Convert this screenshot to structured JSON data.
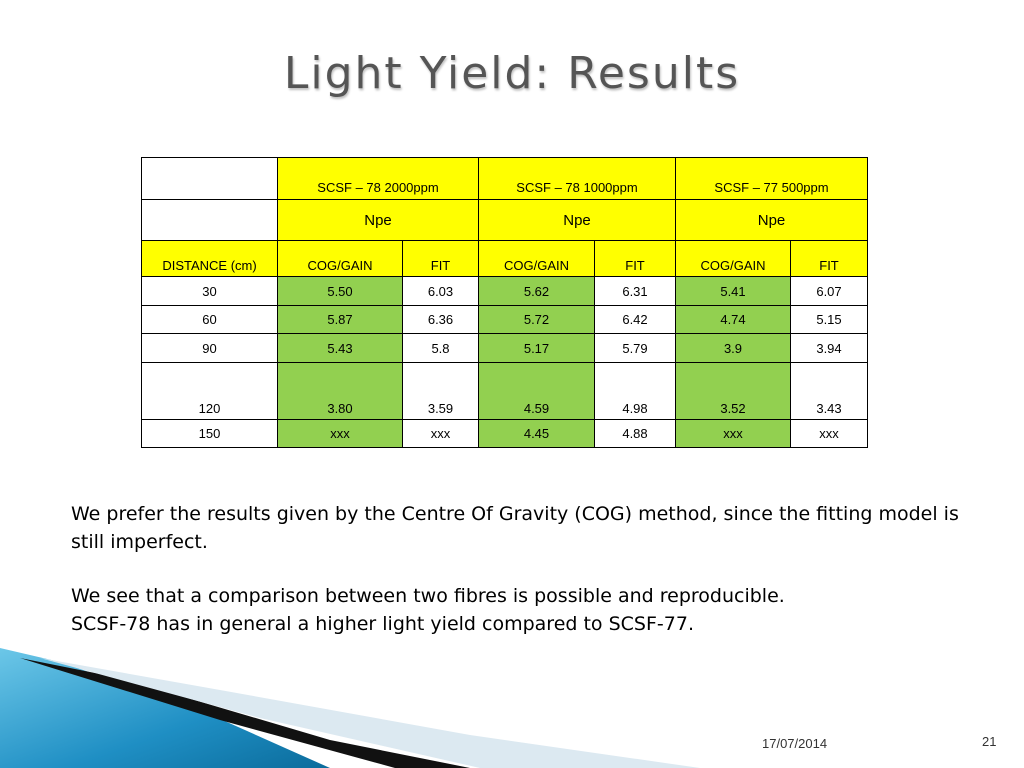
{
  "title": "Light Yield: Results",
  "table": {
    "group_headers": [
      "SCSF – 78 2000ppm",
      "SCSF – 78 1000ppm",
      "SCSF – 77 500ppm"
    ],
    "npe_label": "Npe",
    "col_headers": [
      "DISTANCE (cm)",
      "COG/GAIN",
      "FIT",
      "COG/GAIN",
      "FIT",
      "COG/GAIN",
      "FIT"
    ],
    "rows": [
      [
        "30",
        "5.50",
        "6.03",
        "5.62",
        "6.31",
        "5.41",
        "6.07"
      ],
      [
        "60",
        "5.87",
        "6.36",
        "5.72",
        "6.42",
        "4.74",
        "5.15"
      ],
      [
        "90",
        "5.43",
        "5.8",
        "5.17",
        "5.79",
        "3.9",
        "3.94"
      ],
      [
        "120",
        "3.80",
        "3.59",
        "4.59",
        "4.98",
        "3.52",
        "3.43"
      ],
      [
        "150",
        "xxx",
        "xxx",
        "4.45",
        "4.88",
        "xxx",
        "xxx"
      ]
    ]
  },
  "paragraphs": [
    "We prefer the results given by the Centre Of Gravity (COG) method, since the fitting model is still imperfect.",
    "We see that a comparison between two fibres is possible and reproducible.",
    "SCSF-78 has in general a higher light yield compared to  SCSF-77."
  ],
  "footer": {
    "date": "17/07/2014",
    "page": "21"
  },
  "colors": {
    "header_yellow": "#ffff00",
    "cog_green": "#92d050",
    "title_gray": "#555555",
    "accent_blue": "#1f8fc4"
  }
}
